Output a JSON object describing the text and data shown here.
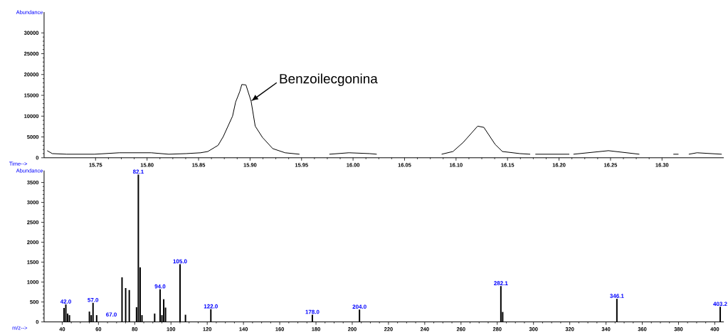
{
  "chart_data": [
    {
      "type": "line",
      "xlabel": "Time-->",
      "ylabel": "Abundance",
      "color": "#000000",
      "x": [
        15.703,
        15.708,
        15.722,
        15.749,
        15.773,
        15.804,
        15.821,
        15.838,
        15.852,
        15.859,
        15.869,
        15.874,
        15.883,
        15.886,
        15.89,
        15.892,
        15.896,
        15.901,
        15.905,
        15.912,
        15.922,
        15.934,
        15.948,
        15.96,
        15.977,
        15.996,
        16.016,
        16.023,
        16.04,
        16.086,
        16.097,
        16.107,
        16.121,
        16.127,
        16.138,
        16.145,
        16.162,
        16.172,
        16.175,
        16.177,
        16.21,
        16.212,
        16.214,
        16.248,
        16.278,
        16.29,
        16.311,
        16.316,
        16.32,
        16.326,
        16.334,
        16.358
      ],
      "values": [
        1700,
        1000,
        850,
        850,
        1200,
        1200,
        850,
        1000,
        1200,
        1500,
        3000,
        5100,
        10000,
        13400,
        15900,
        17600,
        17500,
        13600,
        7600,
        4900,
        2200,
        1200,
        850,
        null,
        850,
        1200,
        1000,
        850,
        null,
        850,
        1500,
        3700,
        7600,
        7300,
        3200,
        1500,
        1000,
        850,
        null,
        850,
        850,
        null,
        850,
        1700,
        850,
        null,
        850,
        850,
        null,
        850,
        1200,
        850
      ],
      "xlim": [
        15.7,
        16.36
      ],
      "ylim": [
        0,
        35000
      ],
      "xticks": [
        {
          "value": 15.75,
          "label": "15.75"
        },
        {
          "value": 15.8,
          "label": "15.80"
        },
        {
          "value": 15.85,
          "label": "15.85"
        },
        {
          "value": 15.9,
          "label": "15.90"
        },
        {
          "value": 15.95,
          "label": "15.95"
        },
        {
          "value": 16.0,
          "label": "16.00"
        },
        {
          "value": 16.05,
          "label": "16.05"
        },
        {
          "value": 16.1,
          "label": "16.10"
        },
        {
          "value": 16.15,
          "label": "16.15"
        },
        {
          "value": 16.2,
          "label": "16.20"
        },
        {
          "value": 16.25,
          "label": "16.25"
        },
        {
          "value": 16.3,
          "label": "16.30"
        }
      ],
      "yticks": [
        0,
        5000,
        10000,
        15000,
        20000,
        25000,
        30000
      ],
      "annotations": [
        {
          "text": "Benzoilecgonina",
          "x": 15.901,
          "y": 13600
        }
      ]
    },
    {
      "type": "bar",
      "xlabel": "m/z-->",
      "ylabel": "Abundance",
      "color": "#000000",
      "x": [
        41,
        42,
        43,
        44,
        55,
        56,
        57,
        59,
        67,
        73,
        75,
        77,
        81,
        82,
        83,
        84,
        91,
        94,
        95,
        96,
        97,
        105,
        108,
        122,
        178,
        204,
        282,
        283,
        346,
        403
      ],
      "values": [
        350,
        440,
        210,
        170,
        260,
        170,
        480,
        170,
        null,
        1120,
        850,
        800,
        370,
        3700,
        1370,
        170,
        210,
        820,
        170,
        570,
        360,
        1450,
        180,
        320,
        180,
        310,
        900,
        250,
        580,
        380
      ],
      "xlim": [
        30,
        405
      ],
      "ylim": [
        0,
        3800
      ],
      "xticks": [
        40,
        60,
        80,
        100,
        120,
        140,
        160,
        180,
        200,
        220,
        240,
        260,
        280,
        300,
        320,
        340,
        360,
        380,
        400
      ],
      "yticks": [
        0,
        500,
        1000,
        1500,
        2000,
        2500,
        3000,
        3500
      ],
      "annotations": [
        {
          "text": "42.0",
          "x": 42,
          "y": 440
        },
        {
          "text": "57.0",
          "x": 57,
          "y": 480
        },
        "67.0",
        {
          "text": "82.1",
          "x": 82,
          "y": 3700
        },
        {
          "text": "94.0",
          "x": 94,
          "y": 820
        },
        {
          "text": "105.0",
          "x": 105,
          "y": 1450
        },
        {
          "text": "122.0",
          "x": 122,
          "y": 320
        },
        {
          "text": "178.0",
          "x": 178,
          "y": 180
        },
        {
          "text": "204.0",
          "x": 204,
          "y": 310
        },
        {
          "text": "282.1",
          "x": 282,
          "y": 900
        },
        {
          "text": "346.1",
          "x": 346,
          "y": 580
        },
        {
          "text": "403.2",
          "x": 403,
          "y": 380
        }
      ]
    }
  ]
}
